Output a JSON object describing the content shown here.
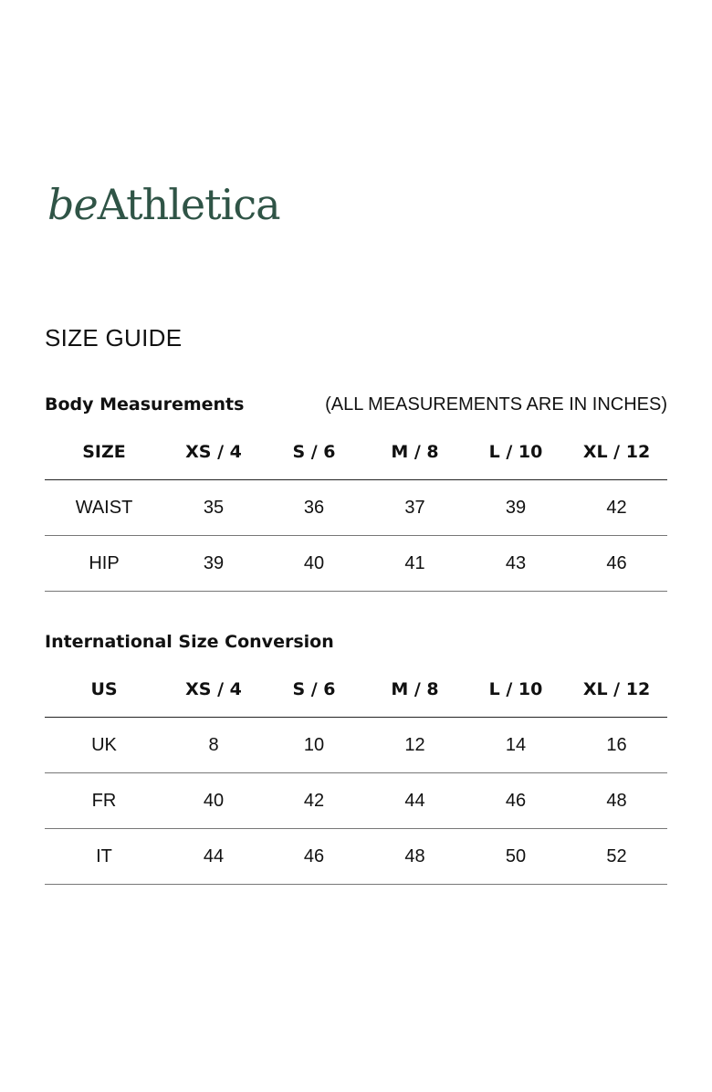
{
  "brand": {
    "logo_part1": "be",
    "logo_part2": "Athletica",
    "color": "#2f5446"
  },
  "page": {
    "title": "SIZE GUIDE"
  },
  "body_measurements": {
    "title": "Body Measurements",
    "note": "(ALL MEASUREMENTS ARE IN INCHES)",
    "headers": [
      "SIZE",
      "XS / 4",
      "S / 6",
      "M / 8",
      "L / 10",
      "XL / 12"
    ],
    "rows": [
      [
        "WAIST",
        "35",
        "36",
        "37",
        "39",
        "42"
      ],
      [
        "HIP",
        "39",
        "40",
        "41",
        "43",
        "46"
      ]
    ]
  },
  "international_conversion": {
    "title": "International Size Conversion",
    "headers": [
      "US",
      "XS / 4",
      "S / 6",
      "M / 8",
      "L / 10",
      "XL / 12"
    ],
    "rows": [
      [
        "UK",
        "8",
        "10",
        "12",
        "14",
        "16"
      ],
      [
        "FR",
        "40",
        "42",
        "44",
        "46",
        "48"
      ],
      [
        "IT",
        "44",
        "46",
        "48",
        "50",
        "52"
      ]
    ]
  }
}
